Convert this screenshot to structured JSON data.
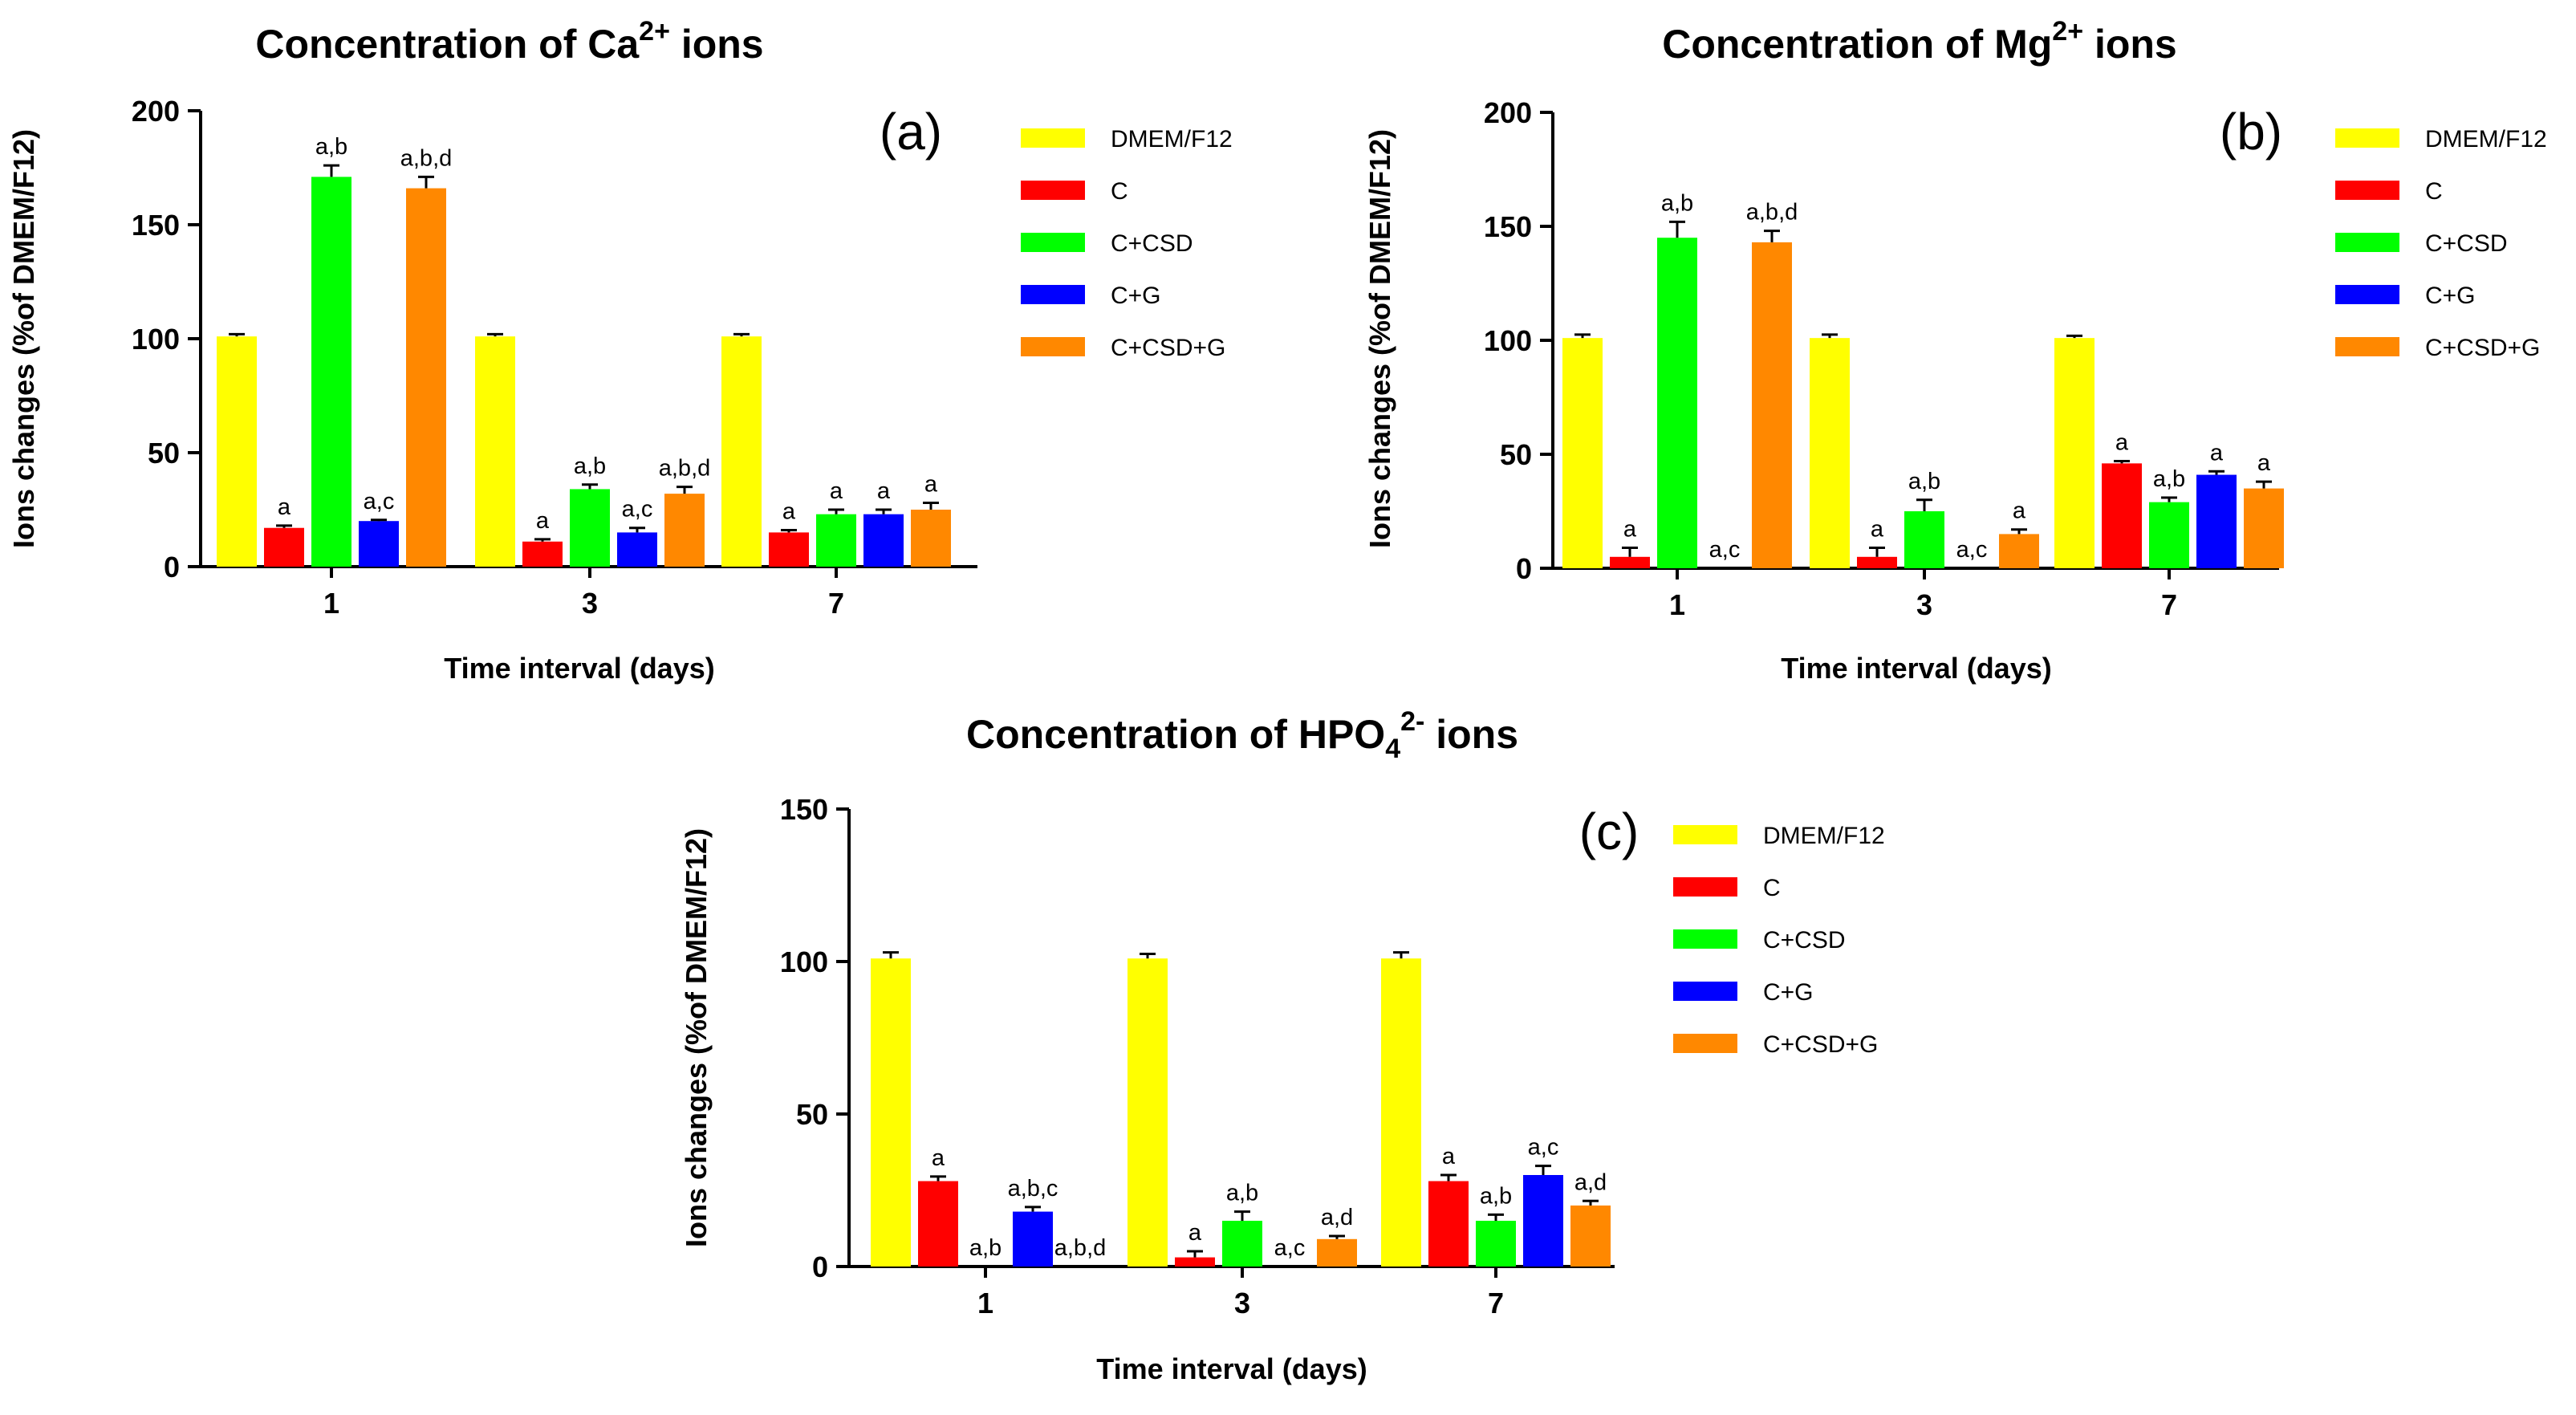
{
  "colors": {
    "DMEM/F12": "#ffff00",
    "C": "#ff0000",
    "C+CSD": "#00ff00",
    "C+G": "#0000ff",
    "C+CSD+G": "#ff8800"
  },
  "chart_data": [
    {
      "id": "a",
      "type": "bar",
      "title": "Concentration of Ca",
      "title_sup": "2+",
      "title_suffix": " ions",
      "panel_label": "(a)",
      "xlabel": "Time interval (days)",
      "ylabel": "Ions changes (%of DMEM/F12)",
      "ylim": [
        0,
        200
      ],
      "yticks": [
        "0",
        "50",
        "100",
        "150",
        "200"
      ],
      "categories": [
        "1",
        "3",
        "7"
      ],
      "series": [
        {
          "name": "DMEM/F12",
          "values": [
            101,
            101,
            101
          ],
          "errors": [
            1,
            1,
            1
          ],
          "labels": [
            "",
            "",
            ""
          ]
        },
        {
          "name": "C",
          "values": [
            17,
            11,
            15
          ],
          "errors": [
            1,
            1,
            1
          ],
          "labels": [
            "a",
            "a",
            "a"
          ]
        },
        {
          "name": "C+CSD",
          "values": [
            171,
            34,
            23
          ],
          "errors": [
            5,
            2,
            2
          ],
          "labels": [
            "a,b",
            "a,b",
            "a"
          ]
        },
        {
          "name": "C+G",
          "values": [
            20,
            15,
            23
          ],
          "errors": [
            0.5,
            2,
            2
          ],
          "labels": [
            "a,c",
            "a,c",
            "a"
          ]
        },
        {
          "name": "C+CSD+G",
          "values": [
            166,
            32,
            25
          ],
          "errors": [
            5,
            3,
            3
          ],
          "labels": [
            "a,b,d",
            "a,b,d",
            "a"
          ]
        }
      ]
    },
    {
      "id": "b",
      "type": "bar",
      "title": "Concentration of Mg",
      "title_sup": "2+",
      "title_suffix": " ions",
      "panel_label": "(b)",
      "xlabel": "Time interval (days)",
      "ylabel": "Ions changes (%of DMEM/F12)",
      "ylim": [
        0,
        200
      ],
      "yticks": [
        "0",
        "50",
        "100",
        "150",
        "200"
      ],
      "categories": [
        "1",
        "3",
        "7"
      ],
      "series": [
        {
          "name": "DMEM/F12",
          "values": [
            101,
            101,
            101
          ],
          "errors": [
            1.5,
            1.5,
            1
          ],
          "labels": [
            "",
            "",
            ""
          ]
        },
        {
          "name": "C",
          "values": [
            5,
            5,
            46
          ],
          "errors": [
            4,
            4,
            1
          ],
          "labels": [
            "a",
            "a",
            "a"
          ]
        },
        {
          "name": "C+CSD",
          "values": [
            145,
            25,
            29
          ],
          "errors": [
            7,
            5,
            2
          ],
          "labels": [
            "a,b",
            "a,b",
            "a,b"
          ]
        },
        {
          "name": "C+G",
          "values": [
            0,
            0,
            41
          ],
          "errors": [
            0,
            0,
            1.5
          ],
          "labels": [
            "a,c",
            "a,c",
            "a"
          ]
        },
        {
          "name": "C+CSD+G",
          "values": [
            143,
            15,
            35
          ],
          "errors": [
            5,
            2,
            3
          ],
          "labels": [
            "a,b,d",
            "a",
            "a"
          ]
        }
      ]
    },
    {
      "id": "c",
      "type": "bar",
      "title": "Concentration of HPO",
      "title_sub": "4",
      "title_sup": "2-",
      "title_suffix": " ions",
      "panel_label": "(c)",
      "xlabel": "Time interval (days)",
      "ylabel": "Ions changes (%of DMEM/F12)",
      "ylim": [
        0,
        150
      ],
      "yticks": [
        "0",
        "50",
        "100",
        "150"
      ],
      "categories": [
        "1",
        "3",
        "7"
      ],
      "series": [
        {
          "name": "DMEM/F12",
          "values": [
            101,
            101,
            101
          ],
          "errors": [
            2,
            1.5,
            2
          ],
          "labels": [
            "",
            "",
            ""
          ]
        },
        {
          "name": "C",
          "values": [
            28,
            3,
            28
          ],
          "errors": [
            1.5,
            2,
            2
          ],
          "labels": [
            "a",
            "a",
            "a"
          ]
        },
        {
          "name": "C+CSD",
          "values": [
            0,
            15,
            15
          ],
          "errors": [
            0,
            3,
            2
          ],
          "labels": [
            "a,b",
            "a,b",
            "a,b"
          ]
        },
        {
          "name": "C+G",
          "values": [
            18,
            0,
            30
          ],
          "errors": [
            1.5,
            0,
            3
          ],
          "labels": [
            "a,b,c",
            "a,c",
            "a,c"
          ]
        },
        {
          "name": "C+CSD+G",
          "values": [
            0,
            9,
            20
          ],
          "errors": [
            0,
            1,
            1.5
          ],
          "labels": [
            "a,b,d",
            "a,d",
            "a,d"
          ]
        }
      ]
    }
  ]
}
